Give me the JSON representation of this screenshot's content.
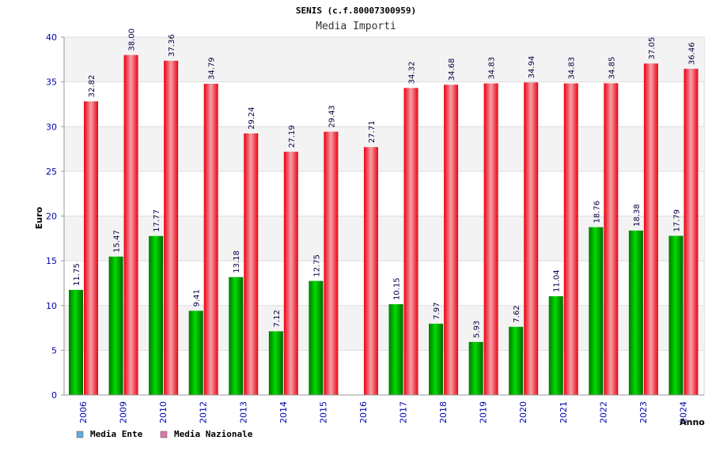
{
  "chart_data": {
    "type": "bar",
    "title": "SENIS (c.f.80007300959)",
    "subtitle": "Media Importi",
    "xlabel": "Anno",
    "ylabel": "Euro",
    "ylim": [
      0,
      40
    ],
    "yticks": [
      "0",
      "5",
      "10",
      "15",
      "20",
      "25",
      "30",
      "35",
      "40"
    ],
    "grid": true,
    "legend_position": "bottom-left",
    "categories": [
      "2006",
      "2009",
      "2010",
      "2012",
      "2013",
      "2014",
      "2015",
      "2016",
      "2017",
      "2018",
      "2019",
      "2020",
      "2021",
      "2022",
      "2023",
      "2024"
    ],
    "series": [
      {
        "name": "Media Ente",
        "color": "#00aa00",
        "values": [
          11.75,
          15.47,
          17.77,
          9.41,
          13.18,
          7.12,
          12.75,
          null,
          10.15,
          7.97,
          5.93,
          7.62,
          11.04,
          18.76,
          18.38,
          17.79
        ],
        "labels": [
          "11.75",
          "15.47",
          "17.77",
          "9.41",
          "13.18",
          "7.12",
          "12.75",
          "",
          "10.15",
          "7.97",
          "5.93",
          "7.62",
          "11.04",
          "18.76",
          "18.38",
          "17.79"
        ]
      },
      {
        "name": "Media Nazionale",
        "color": "#ee0011",
        "values": [
          32.82,
          38.0,
          37.36,
          34.79,
          29.24,
          27.19,
          29.43,
          27.71,
          34.32,
          34.68,
          34.83,
          34.94,
          34.83,
          34.85,
          37.05,
          36.46
        ],
        "labels": [
          "32.82",
          "38.00",
          "37.36",
          "34.79",
          "29.24",
          "27.19",
          "29.43",
          "27.71",
          "34.32",
          "34.68",
          "34.83",
          "34.94",
          "34.83",
          "34.85",
          "37.05",
          "36.46"
        ]
      }
    ],
    "legend": [
      {
        "label": "Media Ente",
        "color": "#66aadd"
      },
      {
        "label": "Media Nazionale",
        "color": "#dd77aa"
      }
    ]
  }
}
